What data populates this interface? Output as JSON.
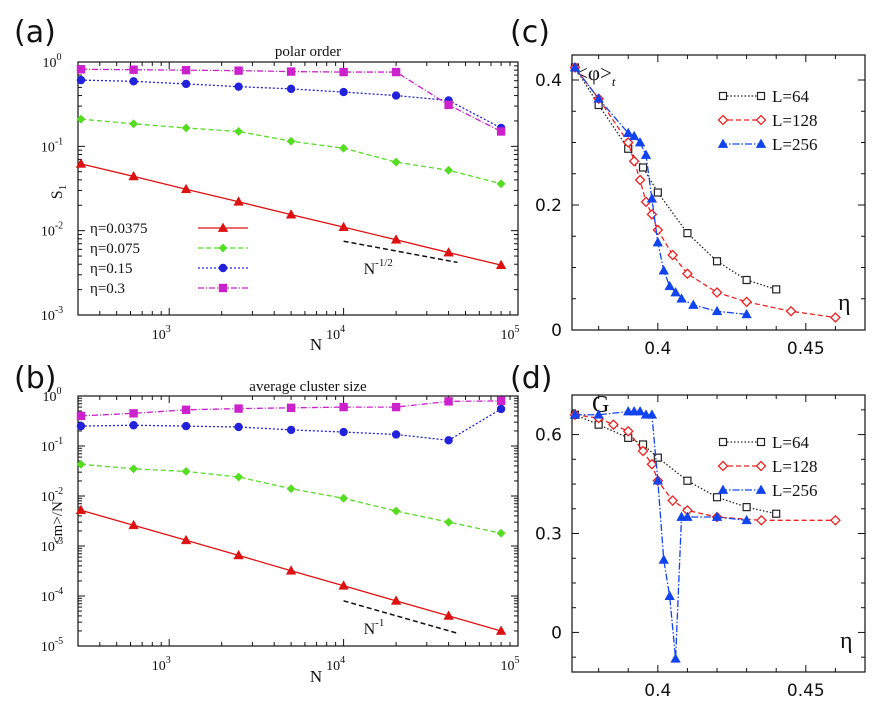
{
  "chart_data": [
    {
      "id": "a",
      "panel_label": "(a)",
      "type": "line",
      "title": "polar order",
      "xlabel": "N",
      "ylabel": "S",
      "ylabel_sub": "1",
      "xscale": "log",
      "yscale": "log",
      "xlim": [
        300,
        100000
      ],
      "ylim": [
        0.001,
        1
      ],
      "x_ticks": [
        {
          "v": 1000,
          "base": "10",
          "exp": "3"
        },
        {
          "v": 10000,
          "base": "10",
          "exp": "4"
        },
        {
          "v": 100000,
          "base": "10",
          "exp": "5"
        }
      ],
      "y_ticks": [
        {
          "v": 1,
          "base": "10",
          "exp": "0"
        },
        {
          "v": 0.1,
          "base": "10",
          "exp": "-1"
        },
        {
          "v": 0.01,
          "base": "10",
          "exp": "-2"
        },
        {
          "v": 0.001,
          "base": "10",
          "exp": "-3"
        }
      ],
      "legend": "lower-left",
      "series": [
        {
          "name": "η=0.0375",
          "color": "#dd1111",
          "dash": "",
          "marker": "triangle",
          "x": [
            312,
            625,
            1250,
            2500,
            5000,
            10000,
            20000,
            40000,
            80000
          ],
          "y": [
            0.062,
            0.044,
            0.031,
            0.022,
            0.0155,
            0.011,
            0.0078,
            0.0055,
            0.0039
          ]
        },
        {
          "name": "η=0.075",
          "color": "#55dd22",
          "dash": "5,3",
          "marker": "diamond",
          "x": [
            312,
            625,
            1250,
            2500,
            5000,
            10000,
            20000,
            40000,
            80000
          ],
          "y": [
            0.21,
            0.185,
            0.165,
            0.15,
            0.115,
            0.095,
            0.065,
            0.052,
            0.036
          ]
        },
        {
          "name": "η=0.15",
          "color": "#2222dd",
          "dash": "2,2",
          "marker": "circle",
          "x": [
            312,
            625,
            1250,
            2500,
            5000,
            10000,
            20000,
            40000,
            80000
          ],
          "y": [
            0.61,
            0.59,
            0.55,
            0.51,
            0.48,
            0.44,
            0.4,
            0.35,
            0.165
          ]
        },
        {
          "name": "η=0.3",
          "color": "#cc22cc",
          "dash": "6,2,1,2",
          "marker": "square",
          "x": [
            312,
            625,
            1250,
            2500,
            5000,
            10000,
            20000,
            40000,
            80000
          ],
          "y": [
            0.82,
            0.81,
            0.8,
            0.79,
            0.77,
            0.76,
            0.76,
            0.31,
            0.15
          ]
        }
      ],
      "annotation": {
        "base": "N",
        "exp": "-1/2",
        "x": [
          10000,
          45000
        ],
        "y": [
          0.0075,
          0.0042
        ]
      }
    },
    {
      "id": "b",
      "panel_label": "(b)",
      "type": "line",
      "title": "average cluster size",
      "xlabel": "N",
      "ylabel": "<m>/N",
      "xscale": "log",
      "yscale": "log",
      "xlim": [
        300,
        100000
      ],
      "ylim": [
        1e-05,
        1
      ],
      "x_ticks": [
        {
          "v": 1000,
          "base": "10",
          "exp": "3"
        },
        {
          "v": 10000,
          "base": "10",
          "exp": "4"
        },
        {
          "v": 100000,
          "base": "10",
          "exp": "5"
        }
      ],
      "y_ticks": [
        {
          "v": 1,
          "base": "10",
          "exp": "0"
        },
        {
          "v": 0.1,
          "base": "10",
          "exp": "-1"
        },
        {
          "v": 0.01,
          "base": "10",
          "exp": "-2"
        },
        {
          "v": 0.001,
          "base": "10",
          "exp": "-3"
        },
        {
          "v": 0.0001,
          "base": "10",
          "exp": "-4"
        },
        {
          "v": 1e-05,
          "base": "10",
          "exp": "-5"
        }
      ],
      "series": [
        {
          "name": "η=0.0375",
          "color": "#dd1111",
          "dash": "",
          "marker": "triangle",
          "x": [
            312,
            625,
            1250,
            2500,
            5000,
            10000,
            20000,
            40000,
            80000
          ],
          "y": [
            0.0052,
            0.0026,
            0.0013,
            0.00065,
            0.00032,
            0.00016,
            8e-05,
            4e-05,
            2e-05
          ]
        },
        {
          "name": "η=0.075",
          "color": "#55dd22",
          "dash": "5,3",
          "marker": "diamond",
          "x": [
            312,
            625,
            1250,
            2500,
            5000,
            10000,
            20000,
            40000,
            80000
          ],
          "y": [
            0.043,
            0.035,
            0.031,
            0.024,
            0.014,
            0.009,
            0.005,
            0.003,
            0.0018
          ]
        },
        {
          "name": "η=0.15",
          "color": "#2222dd",
          "dash": "2,2",
          "marker": "circle",
          "x": [
            312,
            625,
            1250,
            2500,
            5000,
            10000,
            20000,
            40000,
            80000
          ],
          "y": [
            0.25,
            0.26,
            0.25,
            0.24,
            0.21,
            0.19,
            0.17,
            0.13,
            0.55
          ]
        },
        {
          "name": "η=0.3",
          "color": "#cc22cc",
          "dash": "6,2,1,2",
          "marker": "square",
          "x": [
            312,
            625,
            1250,
            2500,
            5000,
            10000,
            20000,
            40000,
            80000
          ],
          "y": [
            0.4,
            0.45,
            0.53,
            0.56,
            0.58,
            0.6,
            0.6,
            0.78,
            0.8
          ]
        }
      ],
      "annotation": {
        "base": "N",
        "exp": "-1",
        "x": [
          10000,
          45000
        ],
        "y": [
          8e-05,
          1.8e-05
        ]
      }
    },
    {
      "id": "c",
      "panel_label": "(c)",
      "type": "line",
      "ylabel": "<φ>",
      "ylabel_sub": "t",
      "xlabel": "η",
      "xlim": [
        0.371,
        0.47
      ],
      "ylim": [
        0,
        0.44
      ],
      "x_ticks": [
        {
          "v": 0.4,
          "label": "0.4"
        },
        {
          "v": 0.45,
          "label": "0.45"
        }
      ],
      "y_ticks": [
        {
          "v": 0,
          "label": "0"
        },
        {
          "v": 0.2,
          "label": "0.2"
        },
        {
          "v": 0.4,
          "label": "0.4"
        }
      ],
      "legend": "top-right",
      "series": [
        {
          "name": "L=64",
          "color": "#222222",
          "dash": "1.5,2",
          "marker": "square-open",
          "x": [
            0.372,
            0.38,
            0.39,
            0.395,
            0.4,
            0.41,
            0.42,
            0.43,
            0.44
          ],
          "y": [
            0.42,
            0.36,
            0.29,
            0.26,
            0.22,
            0.155,
            0.11,
            0.08,
            0.065
          ]
        },
        {
          "name": "L=128",
          "color": "#ee2222",
          "dash": "5,3",
          "marker": "diamond-open",
          "x": [
            0.372,
            0.38,
            0.39,
            0.392,
            0.394,
            0.396,
            0.398,
            0.4,
            0.405,
            0.41,
            0.42,
            0.43,
            0.445,
            0.46
          ],
          "y": [
            0.42,
            0.37,
            0.3,
            0.27,
            0.24,
            0.205,
            0.185,
            0.16,
            0.12,
            0.09,
            0.06,
            0.045,
            0.03,
            0.02
          ]
        },
        {
          "name": "L=256",
          "color": "#1144ee",
          "dash": "7,2,1.5,2",
          "marker": "triangle",
          "x": [
            0.372,
            0.38,
            0.39,
            0.392,
            0.394,
            0.396,
            0.398,
            0.4,
            0.402,
            0.404,
            0.406,
            0.408,
            0.412,
            0.42,
            0.43
          ],
          "y": [
            0.42,
            0.37,
            0.315,
            0.31,
            0.3,
            0.28,
            0.21,
            0.14,
            0.095,
            0.07,
            0.06,
            0.05,
            0.04,
            0.03,
            0.025
          ]
        }
      ]
    },
    {
      "id": "d",
      "panel_label": "(d)",
      "type": "line",
      "ylabel": "G",
      "xlabel": "η",
      "xlim": [
        0.371,
        0.47
      ],
      "ylim": [
        -0.12,
        0.72
      ],
      "x_ticks": [
        {
          "v": 0.4,
          "label": "0.4"
        },
        {
          "v": 0.45,
          "label": "0.45"
        }
      ],
      "y_ticks": [
        {
          "v": 0,
          "label": "0"
        },
        {
          "v": 0.3,
          "label": "0.3"
        },
        {
          "v": 0.6,
          "label": "0.6"
        }
      ],
      "legend": "top-right",
      "series": [
        {
          "name": "L=64",
          "color": "#222222",
          "dash": "1.5,2",
          "marker": "square-open",
          "x": [
            0.372,
            0.38,
            0.39,
            0.395,
            0.4,
            0.41,
            0.42,
            0.43,
            0.44
          ],
          "y": [
            0.66,
            0.63,
            0.59,
            0.57,
            0.53,
            0.46,
            0.41,
            0.38,
            0.36
          ]
        },
        {
          "name": "L=128",
          "color": "#ee2222",
          "dash": "5,3",
          "marker": "diamond-open",
          "x": [
            0.372,
            0.38,
            0.385,
            0.39,
            0.395,
            0.398,
            0.4,
            0.405,
            0.41,
            0.42,
            0.435,
            0.46
          ],
          "y": [
            0.66,
            0.65,
            0.63,
            0.61,
            0.55,
            0.51,
            0.46,
            0.4,
            0.37,
            0.35,
            0.34,
            0.34
          ]
        },
        {
          "name": "L=256",
          "color": "#1144ee",
          "dash": "7,2,1.5,2",
          "marker": "triangle",
          "x": [
            0.372,
            0.38,
            0.39,
            0.392,
            0.394,
            0.396,
            0.398,
            0.4,
            0.402,
            0.404,
            0.406,
            0.408,
            0.41,
            0.42,
            0.43
          ],
          "y": [
            0.66,
            0.66,
            0.67,
            0.67,
            0.67,
            0.66,
            0.66,
            0.46,
            0.22,
            0.11,
            -0.08,
            0.35,
            0.35,
            0.35,
            0.34
          ]
        }
      ]
    }
  ]
}
